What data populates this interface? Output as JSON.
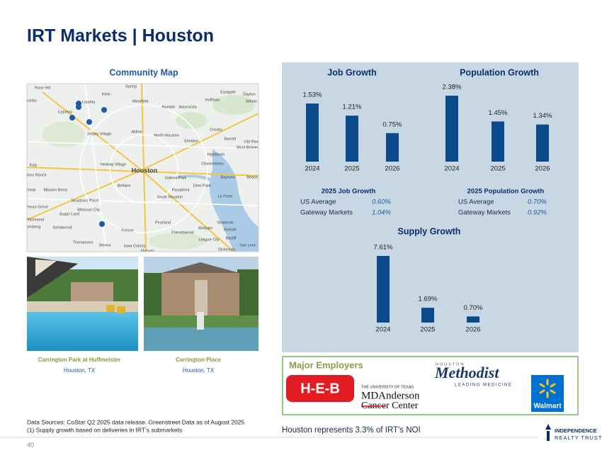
{
  "title": "IRT Markets | Houston",
  "map_title": "Community Map",
  "map_labels": [
    "Rose Hill",
    "Spring",
    "Klein",
    "Westfield",
    "Humble",
    "Atascocita",
    "Eastgate",
    "Dayton",
    "Huffman",
    "Stilson",
    "Hockley",
    "Louetta",
    "Cypress",
    "Jersey Village",
    "Aldine",
    "North Houston",
    "Crosby",
    "Sheldon",
    "Barrett",
    "Highlands",
    "Katy",
    "Hedwig Village",
    "Houston",
    "Channelview",
    "Cinco Ranch",
    "Galena Park",
    "Baytown",
    "Beach",
    "Bellaire",
    "Pasadena",
    "Deer Park",
    "Mission Bend",
    "South Houston",
    "La Porte",
    "Meadows Place",
    "Pecan Grove",
    "Missouri City",
    "Sugar Land",
    "Richmond",
    "Pearland",
    "Seabrook",
    "Kemah",
    "Rosenberg",
    "Greatwood",
    "Fresno",
    "Friendswood",
    "Webster",
    "League City",
    "Bacliff",
    "Sienna",
    "Iowa Colony",
    "Thompsons",
    "Manvel",
    "Dickinson",
    "San Leon",
    "Fulshear",
    "Old River",
    "Mont Belvieu"
  ],
  "properties": [
    {
      "name": "Carrington Park at Huffmeister",
      "location": "Houston, TX"
    },
    {
      "name": "Carrington Place",
      "location": "Houston, TX"
    }
  ],
  "chart_data": [
    {
      "type": "bar",
      "title": "Job Growth",
      "categories": [
        "2024",
        "2025",
        "2026"
      ],
      "values": [
        1.53,
        1.21,
        0.75
      ],
      "value_labels": [
        "1.53%",
        "1.21%",
        "0.75%"
      ],
      "color": "#0b4a8b"
    },
    {
      "type": "bar",
      "title": "Population Growth",
      "categories": [
        "2024",
        "2025",
        "2026"
      ],
      "values": [
        2.38,
        1.45,
        1.34
      ],
      "value_labels": [
        "2.38%",
        "1.45%",
        "1.34%"
      ],
      "color": "#0b4a8b"
    },
    {
      "type": "bar",
      "title": "Supply Growth",
      "categories": [
        "2024",
        "2025",
        "2026"
      ],
      "values": [
        7.61,
        1.69,
        0.7
      ],
      "value_labels": [
        "7.61%",
        "1.69%",
        "0.70%"
      ],
      "color": "#0b4a8b"
    }
  ],
  "stats": [
    {
      "title": "2025 Job Growth",
      "rows": [
        {
          "label": "US Average",
          "value": "0.60%"
        },
        {
          "label": "Gateway Markets",
          "value": "1.04%"
        }
      ]
    },
    {
      "title": "2025 Population Growth",
      "rows": [
        {
          "label": "US Average",
          "value": "0.70%"
        },
        {
          "label": "Gateway Markets",
          "value": "0.92%"
        }
      ]
    }
  ],
  "employers": {
    "title": "Major Employers",
    "heb": "H-E-B",
    "mda_top": "THE UNIVERSITY OF TEXAS",
    "mda_name": "MDAnderson",
    "mda_sub": "Cancer Center",
    "methodist_top": "HOUSTON",
    "methodist_name": "Methodist",
    "methodist_sub": "LEADING MEDICINE",
    "walmart": "Walmart"
  },
  "footnotes": [
    "Data Sources: CoStar Q2 2025 data release. Greenstreet Data as of August 2025",
    "(1)  Supply growth based on deliveries in IRT's submarkets"
  ],
  "noi_note": "Houston represents 3.3% of IRT's NOI",
  "page_number": "40",
  "logo": [
    "INDEPENDENCE",
    "REALTY TRUST"
  ]
}
